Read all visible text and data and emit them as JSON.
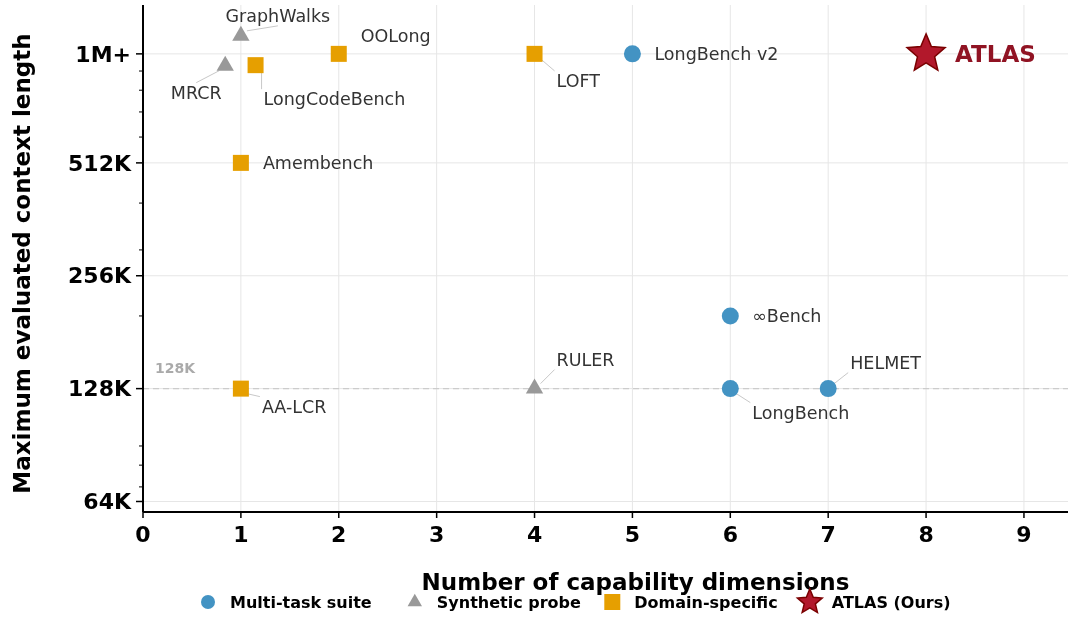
{
  "chart_data": {
    "type": "scatter",
    "xlabel": "Number of capability dimensions",
    "ylabel": "Maximum evaluated context length",
    "xlim": [
      0,
      9.45
    ],
    "xticks": [
      0,
      1,
      2,
      3,
      4,
      5,
      6,
      7,
      8,
      9
    ],
    "ylim": [
      60000,
      1350000
    ],
    "log": "y",
    "yticks": [
      {
        "value": 64000,
        "label": "64K"
      },
      {
        "value": 70000,
        "label": null
      },
      {
        "value": 80000,
        "label": null
      },
      {
        "value": 90000,
        "label": null
      },
      {
        "value": 128000,
        "label": "128K"
      },
      {
        "value": 200000,
        "label": null
      },
      {
        "value": 256000,
        "label": "256K"
      },
      {
        "value": 300000,
        "label": null
      },
      {
        "value": 400000,
        "label": null
      },
      {
        "value": 512000,
        "label": "512K"
      },
      {
        "value": 600000,
        "label": null
      },
      {
        "value": 700000,
        "label": null
      },
      {
        "value": 800000,
        "label": null
      },
      {
        "value": 900000,
        "label": null
      },
      {
        "value": 1000000,
        "label": "1M+"
      }
    ],
    "grid": true,
    "legend": "bottom",
    "series": [
      {
        "name": "Multi-task suite",
        "color": "#4393c3",
        "marker": "circle",
        "x": [
          5,
          6,
          6,
          7
        ],
        "values": [
          1000000,
          200000,
          128000,
          128000
        ]
      },
      {
        "name": "Synthetic probe",
        "color": "#999999",
        "marker": "triangle",
        "x": [
          1,
          0.84,
          4
        ],
        "values": [
          1117000,
          930000,
          128000
        ]
      },
      {
        "name": "Domain-specific",
        "color": "#e69f00",
        "marker": "square",
        "x": [
          2,
          1.15,
          4,
          1,
          1
        ],
        "values": [
          1000000,
          933000,
          1000000,
          512000,
          128000
        ]
      },
      {
        "name": "ATLAS (Ours)",
        "color": "#b2182b",
        "marker": "star",
        "x": [
          8
        ],
        "values": [
          1000000
        ]
      }
    ],
    "ref_lines": [
      {
        "axis": "y",
        "value": 128000,
        "label": "128K",
        "color": "#cccccc",
        "line_style": "dashed"
      }
    ],
    "annotations": [
      {
        "text": "LongBench v2",
        "x": 5,
        "y": 1000000
      },
      {
        "text": "∞Bench",
        "x": 6,
        "y": 200000
      },
      {
        "text": "LongBench",
        "x": 6,
        "y": 128000
      },
      {
        "text": "HELMET",
        "x": 7,
        "y": 128000
      },
      {
        "text": "GraphWalks",
        "x": 1,
        "y": 1117000
      },
      {
        "text": "MRCR",
        "x": 0.84,
        "y": 930000
      },
      {
        "text": "RULER",
        "x": 4,
        "y": 128000
      },
      {
        "text": "OOLong",
        "x": 2,
        "y": 1000000
      },
      {
        "text": "LongCodeBench",
        "x": 1.15,
        "y": 933000
      },
      {
        "text": "LOFT",
        "x": 4,
        "y": 1000000
      },
      {
        "text": "Amembench",
        "x": 1,
        "y": 512000
      },
      {
        "text": "AA-LCR",
        "x": 1,
        "y": 128000
      },
      {
        "text": "ATLAS",
        "x": 8,
        "y": 1000000
      }
    ]
  }
}
